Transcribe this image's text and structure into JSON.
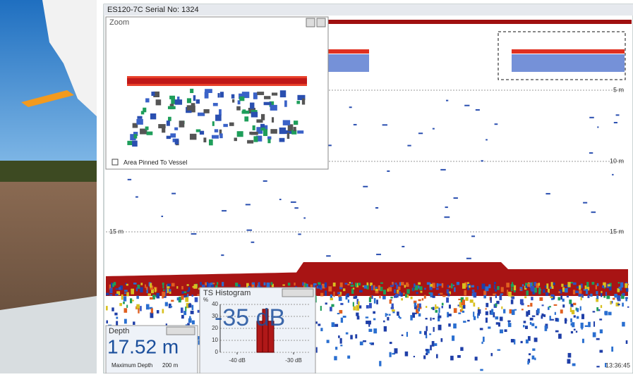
{
  "window": {
    "title": "ES120-7C Serial No: 1324",
    "time": "13:36:45"
  },
  "echogram": {
    "depth_lines": [
      "5 m",
      "10 m",
      "15 m"
    ]
  },
  "zoom": {
    "title": "Zoom",
    "option": "Area Pinned To Vessel"
  },
  "depth_panel": {
    "title": "Depth",
    "value": "17.52 m",
    "max_label": "Maximum Depth",
    "max_value": "200 m"
  },
  "chart_data": {
    "type": "histogram",
    "title": "TS Histogram",
    "readout": "-35 dB",
    "y_label": "%",
    "bins": [
      -36.5,
      -35.5,
      -34.5,
      -33.5
    ],
    "values": [
      26,
      36,
      26
    ],
    "color": "#b01818",
    "xlim": [
      -43,
      -27
    ],
    "xticks": [
      {
        "value": -40,
        "label": "-40 dB"
      },
      {
        "value": -30,
        "label": "-30 dB"
      }
    ],
    "ylim": [
      0,
      40
    ],
    "yticks": [
      0,
      10,
      20,
      30,
      40
    ],
    "grid": true
  }
}
